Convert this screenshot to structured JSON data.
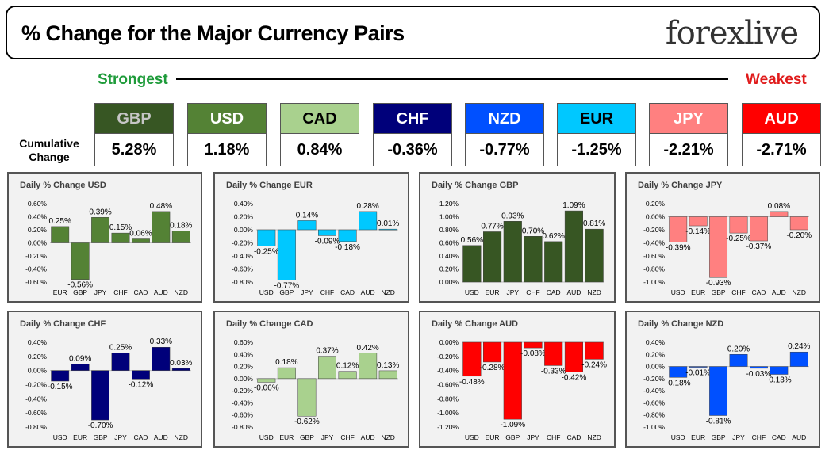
{
  "header": {
    "title": "% Change for the Major Currency Pairs",
    "logo": "forexlive"
  },
  "strength": {
    "strongest_label": "Strongest",
    "weakest_label": "Weakest",
    "cumulative_label": "Cumulative Change"
  },
  "currencies": [
    {
      "code": "GBP",
      "value": "5.28%",
      "bg": "#375623",
      "fg": "#c6c6c6"
    },
    {
      "code": "USD",
      "value": "1.18%",
      "bg": "#548235",
      "fg": "#ffffff"
    },
    {
      "code": "CAD",
      "value": "0.84%",
      "bg": "#a9d18e",
      "fg": "#000000"
    },
    {
      "code": "CHF",
      "value": "-0.36%",
      "bg": "#00007a",
      "fg": "#ffffff"
    },
    {
      "code": "NZD",
      "value": "-0.77%",
      "bg": "#0050ff",
      "fg": "#ffffff"
    },
    {
      "code": "EUR",
      "value": "-1.25%",
      "bg": "#00c8ff",
      "fg": "#000000"
    },
    {
      "code": "JPY",
      "value": "-2.21%",
      "bg": "#ff8080",
      "fg": "#ffffff"
    },
    {
      "code": "AUD",
      "value": "-2.71%",
      "bg": "#ff0000",
      "fg": "#ffffff"
    }
  ],
  "chart_data": [
    {
      "type": "bar",
      "title": "Daily % Change USD",
      "color": "#548235",
      "categories": [
        "EUR",
        "GBP",
        "JPY",
        "CHF",
        "CAD",
        "AUD",
        "NZD"
      ],
      "values": [
        0.25,
        -0.56,
        0.39,
        0.15,
        0.06,
        0.48,
        0.18
      ],
      "labels": [
        "0.25%",
        "-0.56%",
        "0.39%",
        "0.15%",
        "0.06%",
        "0.48%",
        "0.18%"
      ],
      "ylim": [
        -0.6,
        0.6
      ],
      "ticks": [
        "0.60%",
        "0.40%",
        "0.20%",
        "0.00%",
        "-0.20%",
        "-0.40%",
        "-0.60%"
      ]
    },
    {
      "type": "bar",
      "title": "Daily % Change EUR",
      "color": "#00c8ff",
      "categories": [
        "USD",
        "GBP",
        "JPY",
        "CHF",
        "CAD",
        "AUD",
        "NZD"
      ],
      "values": [
        -0.25,
        -0.77,
        0.14,
        -0.09,
        -0.18,
        0.28,
        0.01
      ],
      "labels": [
        "-0.25%",
        "-0.77%",
        "0.14%",
        "-0.09%",
        "-0.18%",
        "0.28%",
        "0.01%"
      ],
      "ylim": [
        -0.8,
        0.4
      ],
      "ticks": [
        "0.40%",
        "0.20%",
        "0.00%",
        "-0.20%",
        "-0.40%",
        "-0.60%",
        "-0.80%"
      ]
    },
    {
      "type": "bar",
      "title": "Daily % Change GBP",
      "color": "#375623",
      "categories": [
        "USD",
        "EUR",
        "JPY",
        "CHF",
        "CAD",
        "AUD",
        "NZD"
      ],
      "values": [
        0.56,
        0.77,
        0.93,
        0.7,
        0.62,
        1.09,
        0.81
      ],
      "labels": [
        "0.56%",
        "0.77%",
        "0.93%",
        "0.70%",
        "0.62%",
        "1.09%",
        "0.81%"
      ],
      "ylim": [
        0,
        1.2
      ],
      "ticks": [
        "1.20%",
        "1.00%",
        "0.80%",
        "0.60%",
        "0.40%",
        "0.20%",
        "0.00%"
      ]
    },
    {
      "type": "bar",
      "title": "Daily % Change JPY",
      "color": "#ff8080",
      "categories": [
        "USD",
        "EUR",
        "GBP",
        "CHF",
        "CAD",
        "AUD",
        "NZD"
      ],
      "values": [
        -0.39,
        -0.14,
        -0.93,
        -0.25,
        -0.37,
        0.08,
        -0.2
      ],
      "labels": [
        "-0.39%",
        "-0.14%",
        "-0.93%",
        "-0.25%",
        "-0.37%",
        "0.08%",
        "-0.20%"
      ],
      "ylim": [
        -1.0,
        0.2
      ],
      "ticks": [
        "0.20%",
        "0.00%",
        "-0.20%",
        "-0.40%",
        "-0.60%",
        "-0.80%",
        "-1.00%"
      ]
    },
    {
      "type": "bar",
      "title": "Daily % Change CHF",
      "color": "#00007a",
      "categories": [
        "USD",
        "EUR",
        "GBP",
        "JPY",
        "CAD",
        "AUD",
        "NZD"
      ],
      "values": [
        -0.15,
        0.09,
        -0.7,
        0.25,
        -0.12,
        0.33,
        0.03
      ],
      "labels": [
        "-0.15%",
        "0.09%",
        "-0.70%",
        "0.25%",
        "-0.12%",
        "0.33%",
        "0.03%"
      ],
      "ylim": [
        -0.8,
        0.4
      ],
      "ticks": [
        "0.40%",
        "0.20%",
        "0.00%",
        "-0.20%",
        "-0.40%",
        "-0.60%",
        "-0.80%"
      ]
    },
    {
      "type": "bar",
      "title": "Daily % Change CAD",
      "color": "#a9d18e",
      "categories": [
        "USD",
        "EUR",
        "GBP",
        "JPY",
        "CHF",
        "AUD",
        "NZD"
      ],
      "values": [
        -0.06,
        0.18,
        -0.62,
        0.37,
        0.12,
        0.42,
        0.13
      ],
      "labels": [
        "-0.06%",
        "0.18%",
        "-0.62%",
        "0.37%",
        "0.12%",
        "0.42%",
        "0.13%"
      ],
      "ylim": [
        -0.8,
        0.6
      ],
      "ticks": [
        "0.60%",
        "0.40%",
        "0.20%",
        "0.00%",
        "-0.20%",
        "-0.40%",
        "-0.60%",
        "-0.80%"
      ]
    },
    {
      "type": "bar",
      "title": "Daily % Change AUD",
      "color": "#ff0000",
      "categories": [
        "USD",
        "EUR",
        "GBP",
        "JPY",
        "CHF",
        "CAD",
        "NZD"
      ],
      "values": [
        -0.48,
        -0.28,
        -1.09,
        -0.08,
        -0.33,
        -0.42,
        -0.24
      ],
      "labels": [
        "-0.48%",
        "-0.28%",
        "-1.09%",
        "-0.08%",
        "-0.33%",
        "-0.42%",
        "-0.24%"
      ],
      "ylim": [
        -1.2,
        0
      ],
      "ticks": [
        "0.00%",
        "-0.20%",
        "-0.40%",
        "-0.60%",
        "-0.80%",
        "-1.00%",
        "-1.20%"
      ]
    },
    {
      "type": "bar",
      "title": "Daily % Change NZD",
      "color": "#0050ff",
      "categories": [
        "USD",
        "EUR",
        "GBP",
        "JPY",
        "CHF",
        "CAD",
        "AUD"
      ],
      "values": [
        -0.18,
        -0.01,
        -0.81,
        0.2,
        -0.03,
        -0.13,
        0.24
      ],
      "labels": [
        "-0.18%",
        "-0.01%",
        "-0.81%",
        "0.20%",
        "-0.03%",
        "-0.13%",
        "0.24%"
      ],
      "ylim": [
        -1.0,
        0.4
      ],
      "ticks": [
        "0.40%",
        "0.20%",
        "0.00%",
        "-0.20%",
        "-0.40%",
        "-0.60%",
        "-0.80%",
        "-1.00%"
      ]
    }
  ]
}
